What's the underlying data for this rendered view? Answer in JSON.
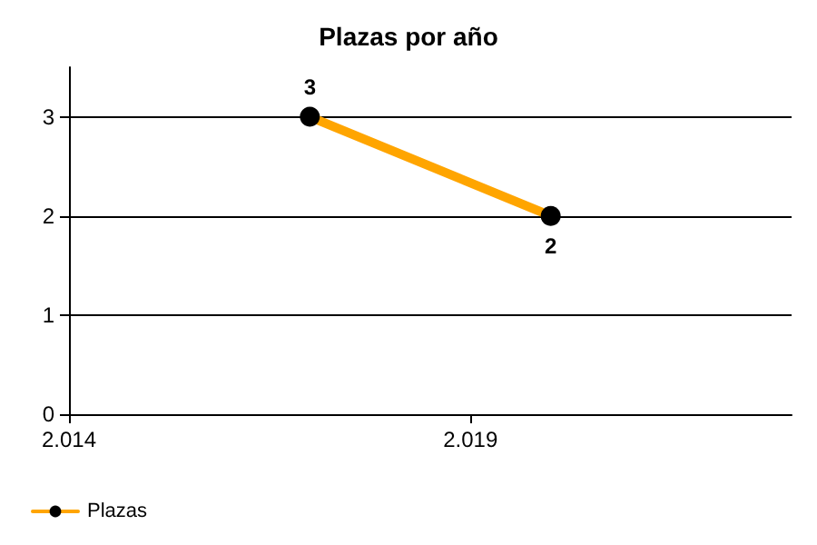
{
  "chart_data": {
    "type": "line",
    "title": "Plazas por año",
    "x": [
      2017,
      2020
    ],
    "series": [
      {
        "name": "Plazas",
        "color": "#ffa500",
        "values": [
          3,
          2
        ]
      }
    ],
    "xlim": [
      2014,
      2023
    ],
    "xticks": [
      {
        "value": 2014,
        "label": "2.014"
      },
      {
        "value": 2019,
        "label": "2.019"
      }
    ],
    "ylim": [
      0,
      3.5
    ],
    "yticks": [
      0,
      1,
      2,
      3
    ],
    "grid": "y",
    "legend": "bottom left",
    "marker": "circle",
    "line_style": "solid",
    "data_labels": true
  }
}
